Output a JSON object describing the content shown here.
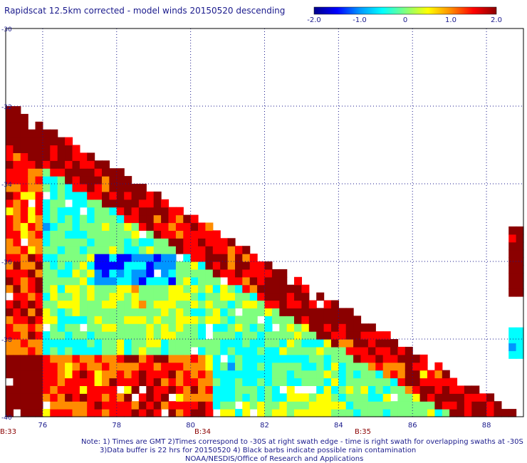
{
  "title": "Rapidscat 12.5km corrected - model winds 20150520 descending",
  "colorbar": {
    "ticks": [
      "-2.0",
      "-1.0",
      "0",
      "1.0",
      "2.0"
    ],
    "colors": [
      "#00008b",
      "#0000ff",
      "#0096ff",
      "#00ffff",
      "#7fff7f",
      "#ffff00",
      "#ff8c00",
      "#ff0000",
      "#8b0000"
    ]
  },
  "chart_data": {
    "type": "heatmap",
    "title": "Rapidscat 12.5km corrected - model winds 20150520 descending",
    "xlabel": "",
    "ylabel": "",
    "xlim": [
      75,
      89
    ],
    "ylim": [
      -40,
      -30
    ],
    "x_ticks": [
      "76",
      "78",
      "80",
      "82",
      "84",
      "86",
      "88"
    ],
    "y_ticks": [
      "-30",
      "-32",
      "-34",
      "-36",
      "-38",
      "-40"
    ],
    "value_range": [
      -2.0,
      2.0
    ],
    "grid": true,
    "colorbar_position": "top-right",
    "swaths": [
      {
        "name": "main",
        "lon_range": [
          75,
          88.8
        ],
        "lat_range": [
          -40,
          -32
        ],
        "edge_from": [
          75,
          -32.0
        ],
        "edge_to": [
          88.8,
          -40
        ]
      },
      {
        "name": "east",
        "lon_range": [
          88.6,
          89
        ],
        "lat_range": [
          -38.5,
          -35.2
        ]
      }
    ],
    "time_labels": [
      "B:33",
      "B:34",
      "B:35"
    ]
  },
  "notes": [
    "Note: 1) Times are GMT 2)Times correspond to -30S at right swath edge - time is right swath for overlapping swaths at -30S",
    "3)Data buffer is 22 hrs for 20150520 4) Black barbs indicate possible rain contamination",
    "NOAA/NESDIS/Office of Research and Applications"
  ]
}
